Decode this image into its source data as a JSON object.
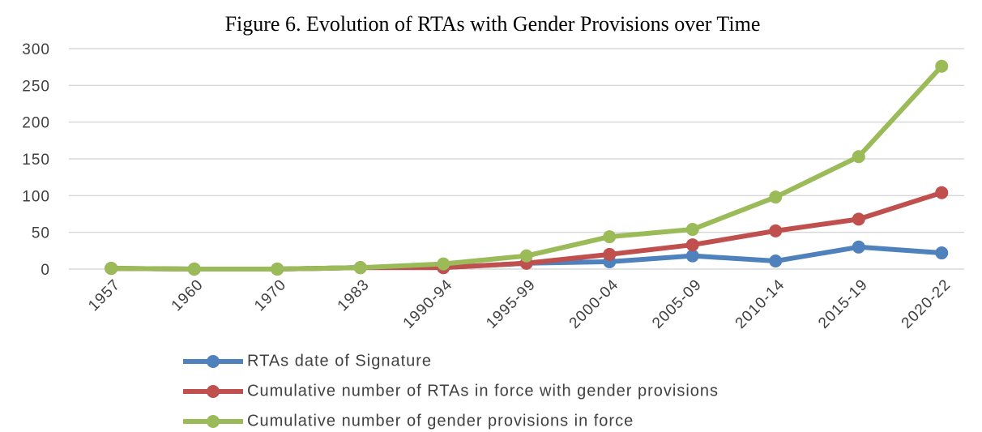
{
  "chart_data": {
    "type": "line",
    "title": "Figure 6. Evolution of RTAs with Gender Provisions over Time",
    "categories": [
      "1957",
      "1960",
      "1970",
      "1983",
      "1990-94",
      "1995-99",
      "2000-04",
      "2005-09",
      "2010-14",
      "2015-19",
      "2020-22"
    ],
    "series": [
      {
        "name": "RTAs date of  Signature",
        "color": "#4f81bd",
        "values": [
          1,
          0,
          0,
          2,
          2,
          8,
          10,
          18,
          11,
          30,
          22
        ]
      },
      {
        "name": "Cumulative number of RTAs in force with gender provisions",
        "color": "#c0504d",
        "values": [
          1,
          0,
          0,
          2,
          2,
          8,
          20,
          33,
          52,
          68,
          104
        ]
      },
      {
        "name": "Cumulative number of gender provisions in force",
        "color": "#9bbb59",
        "values": [
          1,
          0,
          0,
          2,
          7,
          18,
          44,
          54,
          98,
          153,
          276
        ]
      }
    ],
    "ylim": [
      0,
      300
    ],
    "yticks": [
      0,
      50,
      100,
      150,
      200,
      250,
      300
    ],
    "grid": true,
    "legend": "bottom"
  }
}
